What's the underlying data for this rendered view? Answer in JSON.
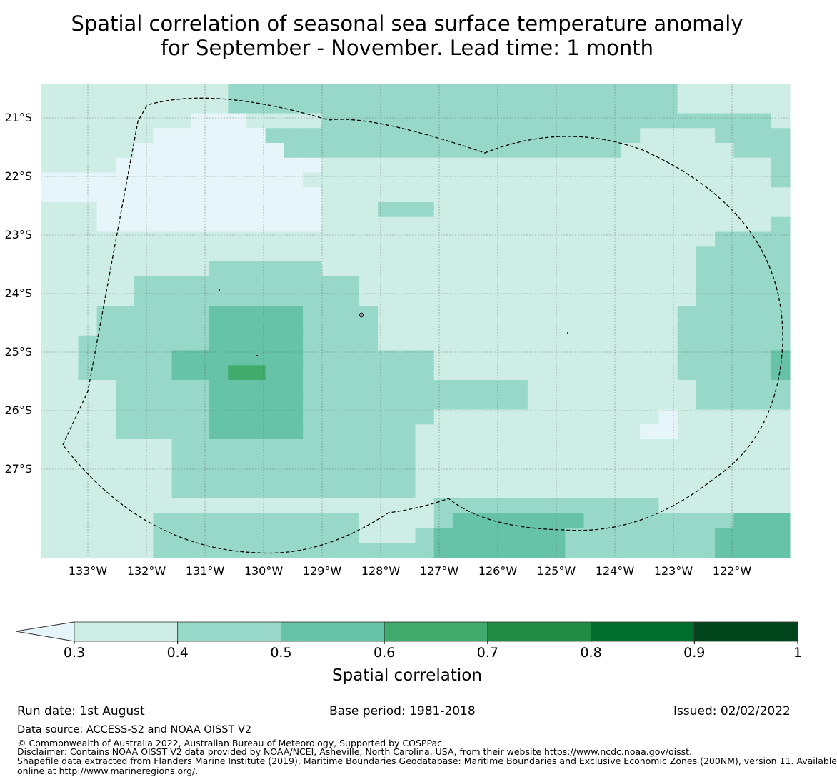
{
  "title": {
    "line1": "Spatial correlation of seasonal sea surface temperature anomaly",
    "line2": "for September - November. Lead time: 1 month"
  },
  "map": {
    "lon_ticks": [
      "133°W",
      "132°W",
      "131°W",
      "130°W",
      "129°W",
      "128°W",
      "127°W",
      "126°W",
      "125°W",
      "124°W",
      "123°W",
      "122°W"
    ],
    "lat_ticks": [
      "21°S",
      "22°S",
      "23°S",
      "24°S",
      "25°S",
      "26°S",
      "27°S"
    ],
    "grid": [
      "1111111111222222222222222222222222111111",
      "1111111111222222222222222222222222111111",
      "1111111100011112222222222222222222222221",
      "1111110000002222222222222222222211112222",
      "1111100000000222222222222222222111111222",
      "1111000000000001111111111111111111111112",
      "0000000000000011111111111111111111111112",
      "0000000000000001111111111111111111111111",
      "1110000000000001112221111111111111111111",
      "1110000000000001111111111111111111111112",
      "1111111111111111111111111111111111112222",
      "1111111111111111111111111111111111122222",
      "1111111112222221111111111111111111122222",
      "1111122222222222211111111111111111122222",
      "1111122222222222211111111111111111122222",
      "1112222223333322221111111111111111222222",
      "1112222223333322221111111111111111222222",
      "1122222223333322221111111111111111222222",
      "1122222333333322222221111111111111222223",
      "1122222333443322222221111111111111222223",
      "1111222223333322222222222211111111122222",
      "1111222223333322222222222211111111122222",
      "1111222223333322222221111111111110111111",
      "1111222223333322222211111111111100111111",
      "1111111222222222222211111111111111111111",
      "1111111222222222222211111111111111111111",
      "1111111222222222222211111111111111111111",
      "1111111222222222222211111111111111111111",
      "1111111111111111111112222222222221111111",
      "1111112222222222211112333333322222222333",
      "1111112222222222211123333333222222223333",
      "1111112222222222222223333333222222223333"
    ],
    "level_colors": [
      "#ceeee5",
      "#98d8c8",
      "#66c3a7",
      "#41ab6d",
      "#228b44"
    ]
  },
  "colorbar": {
    "tick_labels": [
      "0.3",
      "0.4",
      "0.5",
      "0.6",
      "0.7",
      "0.8",
      "0.9",
      "1"
    ],
    "colors": [
      "#ceeee5",
      "#98d8c8",
      "#66c3a7",
      "#41ab6d",
      "#228b44",
      "#006d2c",
      "#00441b"
    ],
    "under_color": "#e5f5f9",
    "label": "Spatial correlation"
  },
  "footer": {
    "run_date": "Run date: 1st August",
    "base_period": "Base period: 1981-2018",
    "issued": "Issued: 02/02/2022",
    "data_source": "Data source: ACCESS-S2 and NOAA OISST V2",
    "copyright": "© Commonwealth of Australia 2022, Australian Bureau of Meteorology, Supported by COSPPac",
    "disclaimer": "Disclaimer: Contains NOAA OISST V2 data provided by NOAA/NCEI, Asheville, North Carolina, USA, from their website https://www.ncdc.noaa.gov/oisst.",
    "shapefile_line1": "Shapefile data extracted from Flanders Marine Institute (2019), Maritime Boundaries Geodatabase: Maritime Boundaries and Exclusive Economic Zones (200NM), version 11. Available",
    "shapefile_line2": "online at http://www.marineregions.org/."
  }
}
